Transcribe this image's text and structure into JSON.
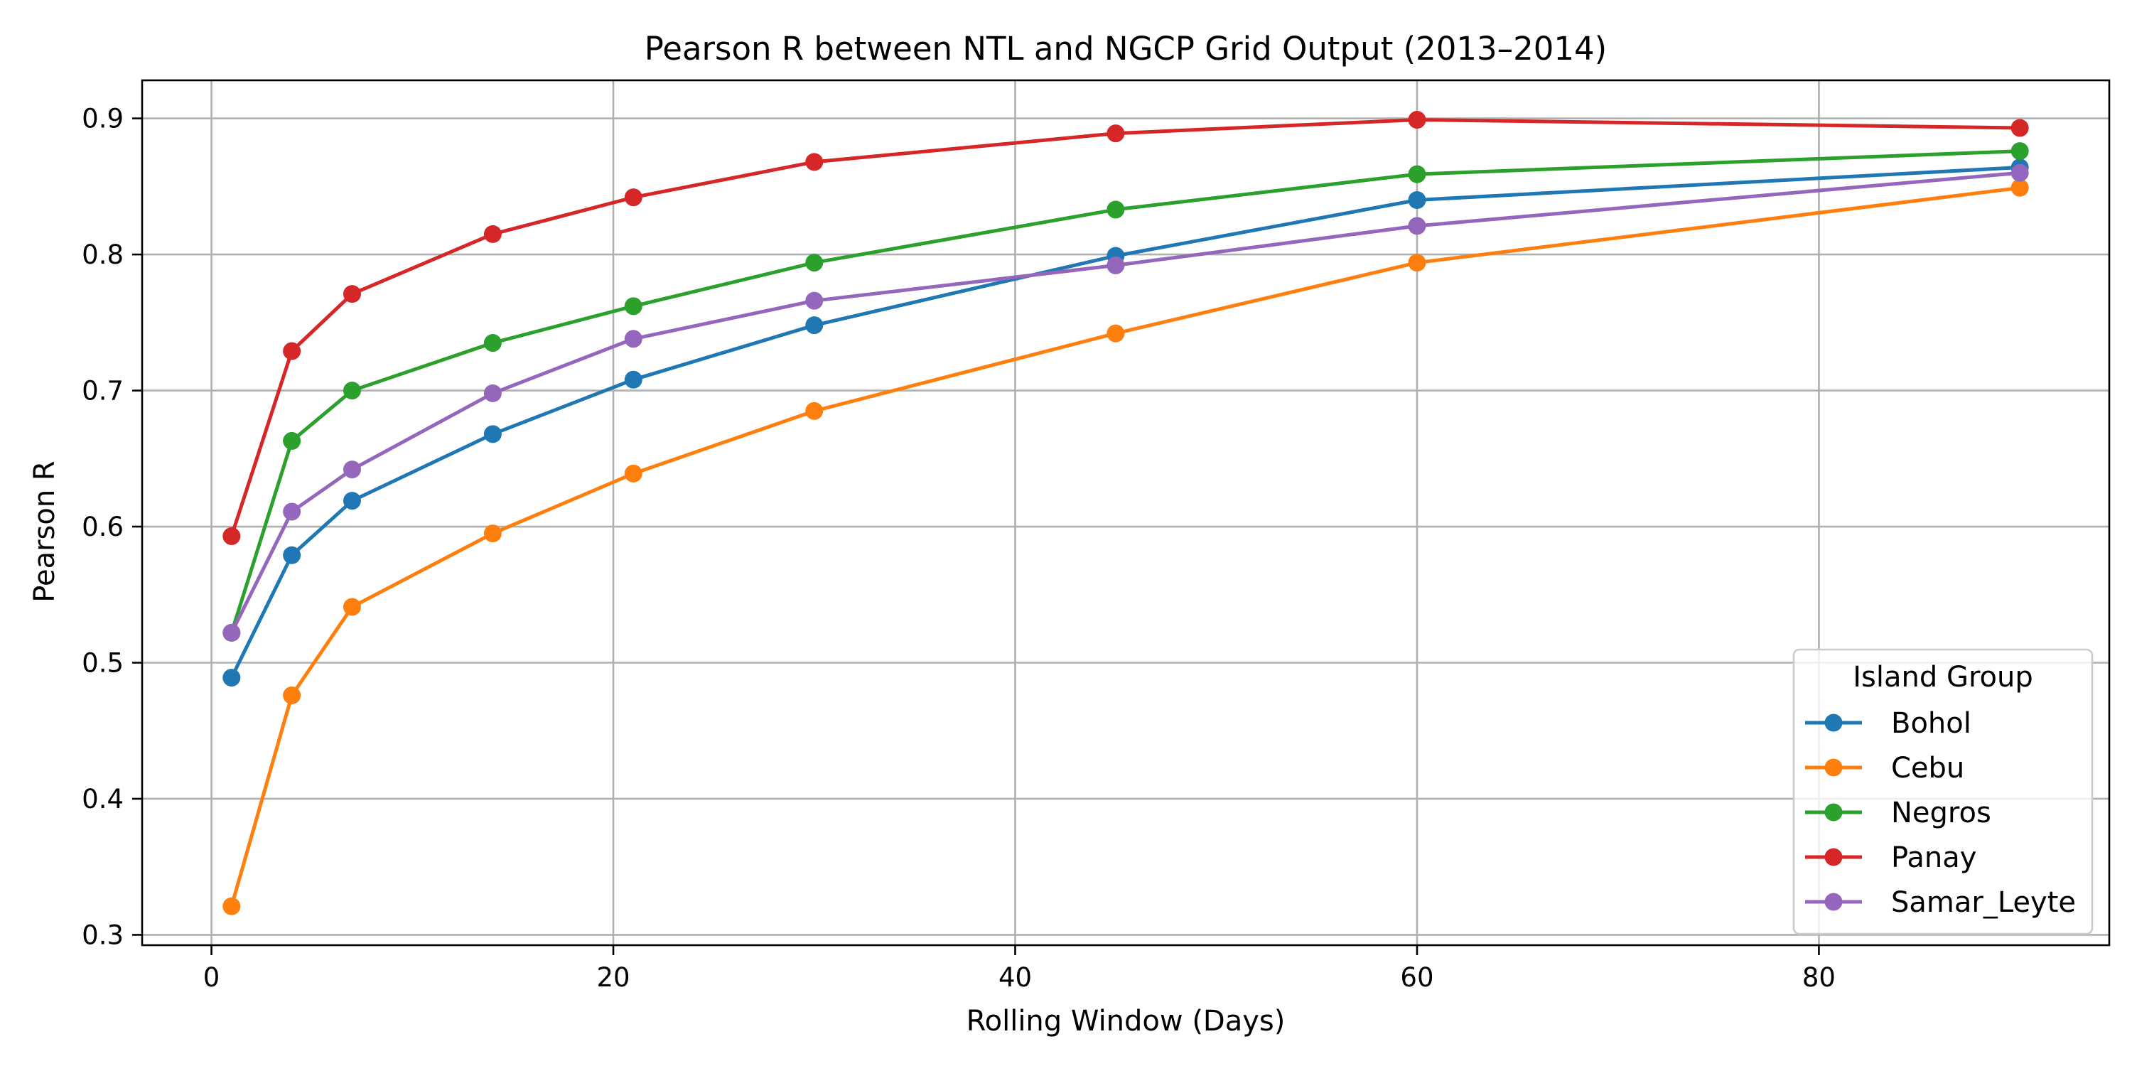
{
  "chart_data": {
    "type": "line",
    "title": "Pearson R between NTL and NGCP Grid Output (2013–2014)",
    "xlabel": "Rolling Window (Days)",
    "ylabel": "Pearson R",
    "xlim": [
      -3.45,
      94.45
    ],
    "ylim": [
      0.2924,
      0.928
    ],
    "xticks": [
      0,
      20,
      40,
      60,
      80
    ],
    "yticks": [
      0.3,
      0.4,
      0.5,
      0.6,
      0.7,
      0.8,
      0.9
    ],
    "xtick_labels": [
      "0",
      "20",
      "40",
      "60",
      "80"
    ],
    "ytick_labels": [
      "0.3",
      "0.4",
      "0.5",
      "0.6",
      "0.7",
      "0.8",
      "0.9"
    ],
    "grid": true,
    "legend": {
      "title": "Island Group",
      "placement": "lower-right"
    },
    "x": [
      1,
      4,
      7,
      14,
      21,
      30,
      45,
      60,
      90
    ],
    "series": [
      {
        "name": "Bohol",
        "color": "#1f77b4",
        "values": [
          0.489,
          0.579,
          0.619,
          0.668,
          0.708,
          0.748,
          0.799,
          0.84,
          0.864
        ]
      },
      {
        "name": "Cebu",
        "color": "#ff7f0e",
        "values": [
          0.321,
          0.476,
          0.541,
          0.595,
          0.639,
          0.685,
          0.742,
          0.794,
          0.849
        ]
      },
      {
        "name": "Negros",
        "color": "#2ca02c",
        "values": [
          0.522,
          0.663,
          0.7,
          0.735,
          0.762,
          0.794,
          0.833,
          0.859,
          0.876
        ]
      },
      {
        "name": "Panay",
        "color": "#d62728",
        "values": [
          0.593,
          0.729,
          0.771,
          0.815,
          0.842,
          0.868,
          0.889,
          0.899,
          0.893
        ]
      },
      {
        "name": "Samar_Leyte",
        "color": "#9467bd",
        "values": [
          0.522,
          0.611,
          0.642,
          0.698,
          0.738,
          0.766,
          0.792,
          0.821,
          0.86
        ]
      }
    ]
  }
}
